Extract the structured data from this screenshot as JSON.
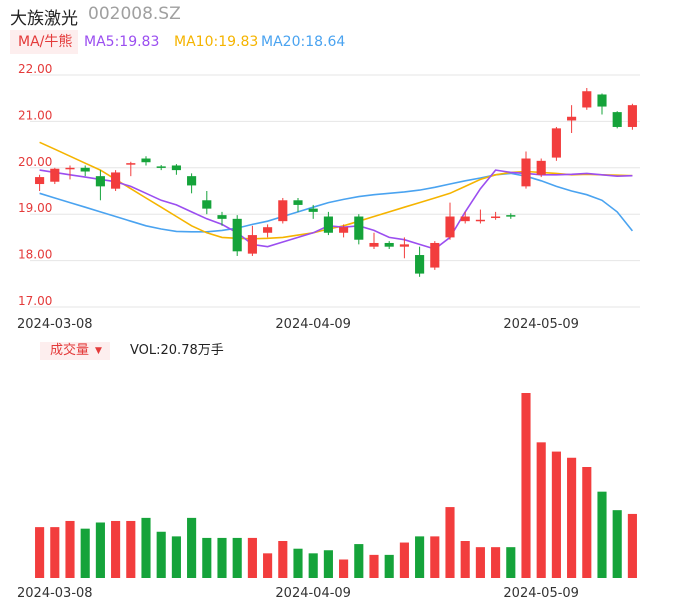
{
  "header": {
    "name": "大族激光",
    "code": "002008.SZ"
  },
  "ma_legend": {
    "label": "MA/牛熊",
    "items": [
      {
        "text": "MA5:19.83",
        "color": "#9b4ef0"
      },
      {
        "text": "MA10:19.83",
        "color": "#f5b400"
      },
      {
        "text": "MA20:18.64",
        "color": "#4aa3f0"
      }
    ]
  },
  "volume_legend": {
    "label": "成交量",
    "value_text": "VOL:20.78万手"
  },
  "colors": {
    "up": "#f23d3d",
    "down": "#15a33a",
    "grid": "#e6e6e6",
    "axis_text": "#e43a3a"
  },
  "chart_data": [
    {
      "type": "candlestick",
      "title": "",
      "y_ticks": [
        "22.00",
        "21.00",
        "20.00",
        "19.00",
        "18.00",
        "17.00"
      ],
      "ylim": [
        17,
        22
      ],
      "x_tick_labels": [
        {
          "index": 1,
          "label": "2024-03-08"
        },
        {
          "index": 18,
          "label": "2024-04-09"
        },
        {
          "index": 33,
          "label": "2024-05-09"
        }
      ],
      "grid": true,
      "candles": [
        {
          "o": 19.65,
          "c": 19.8,
          "h": 19.85,
          "l": 19.5
        },
        {
          "o": 19.7,
          "c": 19.98,
          "h": 20.0,
          "l": 19.65
        },
        {
          "o": 19.98,
          "c": 20.0,
          "h": 20.05,
          "l": 19.75
        },
        {
          "o": 20.0,
          "c": 19.92,
          "h": 20.05,
          "l": 19.82
        },
        {
          "o": 19.82,
          "c": 19.6,
          "h": 19.95,
          "l": 19.3
        },
        {
          "o": 19.55,
          "c": 19.9,
          "h": 19.95,
          "l": 19.5
        },
        {
          "o": 20.08,
          "c": 20.1,
          "h": 20.13,
          "l": 19.82
        },
        {
          "o": 20.2,
          "c": 20.12,
          "h": 20.25,
          "l": 20.05
        },
        {
          "o": 20.03,
          "c": 20.02,
          "h": 20.06,
          "l": 19.95
        },
        {
          "o": 20.05,
          "c": 19.95,
          "h": 20.08,
          "l": 19.85
        },
        {
          "o": 19.82,
          "c": 19.62,
          "h": 19.88,
          "l": 19.45
        },
        {
          "o": 19.3,
          "c": 19.12,
          "h": 19.5,
          "l": 19.0
        },
        {
          "o": 18.98,
          "c": 18.9,
          "h": 19.05,
          "l": 18.75
        },
        {
          "o": 18.9,
          "c": 18.2,
          "h": 18.98,
          "l": 18.1
        },
        {
          "o": 18.15,
          "c": 18.55,
          "h": 18.75,
          "l": 18.1
        },
        {
          "o": 18.6,
          "c": 18.72,
          "h": 18.78,
          "l": 18.5
        },
        {
          "o": 18.85,
          "c": 19.3,
          "h": 19.35,
          "l": 18.8
        },
        {
          "o": 19.3,
          "c": 19.2,
          "h": 19.35,
          "l": 19.05
        },
        {
          "o": 19.12,
          "c": 19.05,
          "h": 19.2,
          "l": 18.9
        },
        {
          "o": 18.95,
          "c": 18.6,
          "h": 19.05,
          "l": 18.55
        },
        {
          "o": 18.6,
          "c": 18.72,
          "h": 18.78,
          "l": 18.5
        },
        {
          "o": 18.95,
          "c": 18.45,
          "h": 19.0,
          "l": 18.35
        },
        {
          "o": 18.3,
          "c": 18.38,
          "h": 18.6,
          "l": 18.25
        },
        {
          "o": 18.38,
          "c": 18.3,
          "h": 18.42,
          "l": 18.25
        },
        {
          "o": 18.3,
          "c": 18.35,
          "h": 18.5,
          "l": 18.05
        },
        {
          "o": 18.12,
          "c": 17.72,
          "h": 18.3,
          "l": 17.65
        },
        {
          "o": 17.85,
          "c": 18.38,
          "h": 18.42,
          "l": 17.8
        },
        {
          "o": 18.5,
          "c": 18.95,
          "h": 19.25,
          "l": 18.45
        },
        {
          "o": 18.85,
          "c": 18.95,
          "h": 19.05,
          "l": 18.8
        },
        {
          "o": 18.85,
          "c": 18.88,
          "h": 19.1,
          "l": 18.8
        },
        {
          "o": 18.92,
          "c": 18.95,
          "h": 19.05,
          "l": 18.88
        },
        {
          "o": 18.98,
          "c": 18.95,
          "h": 19.02,
          "l": 18.9
        },
        {
          "o": 19.6,
          "c": 20.2,
          "h": 20.35,
          "l": 19.55
        },
        {
          "o": 19.85,
          "c": 20.15,
          "h": 20.2,
          "l": 19.8
        },
        {
          "o": 20.22,
          "c": 20.85,
          "h": 20.88,
          "l": 20.15
        },
        {
          "o": 21.02,
          "c": 21.1,
          "h": 21.35,
          "l": 20.75
        },
        {
          "o": 21.3,
          "c": 21.65,
          "h": 21.72,
          "l": 21.25
        },
        {
          "o": 21.58,
          "c": 21.32,
          "h": 21.6,
          "l": 21.15
        },
        {
          "o": 21.2,
          "c": 20.88,
          "h": 21.22,
          "l": 20.85
        },
        {
          "o": 20.88,
          "c": 21.35,
          "h": 21.38,
          "l": 20.82
        }
      ],
      "ma5": [
        19.95,
        19.9,
        19.85,
        19.8,
        19.75,
        19.7,
        19.6,
        19.45,
        19.3,
        19.2,
        19.05,
        18.9,
        18.78,
        18.6,
        18.35,
        18.3,
        18.4,
        18.5,
        18.6,
        18.75,
        18.72,
        18.75,
        18.65,
        18.5,
        18.45,
        18.35,
        18.25,
        18.5,
        19.05,
        19.55,
        19.95,
        19.9,
        19.88,
        19.85,
        19.85,
        19.86,
        19.88,
        19.85,
        19.82,
        19.83
      ],
      "ma10": [
        20.55,
        20.4,
        20.25,
        20.1,
        19.95,
        19.75,
        19.55,
        19.35,
        19.15,
        18.95,
        18.75,
        18.6,
        18.5,
        18.48,
        18.47,
        18.48,
        18.5,
        18.55,
        18.6,
        18.68,
        18.75,
        18.85,
        18.95,
        19.05,
        19.15,
        19.25,
        19.35,
        19.45,
        19.6,
        19.75,
        19.85,
        19.9,
        19.92,
        19.9,
        19.88,
        19.85,
        19.86,
        19.85,
        19.84,
        19.83
      ],
      "ma20": [
        19.45,
        19.35,
        19.25,
        19.15,
        19.05,
        18.95,
        18.85,
        18.75,
        18.68,
        18.63,
        18.62,
        18.62,
        18.65,
        18.7,
        18.78,
        18.85,
        18.95,
        19.05,
        19.15,
        19.25,
        19.32,
        19.38,
        19.42,
        19.45,
        19.48,
        19.52,
        19.58,
        19.65,
        19.72,
        19.78,
        19.85,
        19.88,
        19.82,
        19.72,
        19.6,
        19.5,
        19.42,
        19.3,
        19.05,
        18.64
      ]
    },
    {
      "type": "bar",
      "title": "",
      "value_label": "VOL",
      "unit": "万手",
      "last_value": 20.78,
      "ylim": [
        0,
        60
      ],
      "volumes": [
        16.5,
        16.5,
        18.5,
        16.0,
        18.0,
        18.5,
        18.5,
        19.5,
        15.0,
        13.5,
        19.5,
        13.0,
        13.0,
        13.0,
        13.0,
        8.0,
        12.0,
        9.5,
        8.0,
        9.0,
        6.0,
        11.0,
        7.5,
        7.5,
        11.5,
        13.5,
        13.5,
        23.0,
        12.0,
        10.0,
        10.0,
        10.0,
        60.0,
        44.0,
        41.0,
        39.0,
        36.0,
        28.0,
        22.0,
        20.78
      ]
    }
  ]
}
